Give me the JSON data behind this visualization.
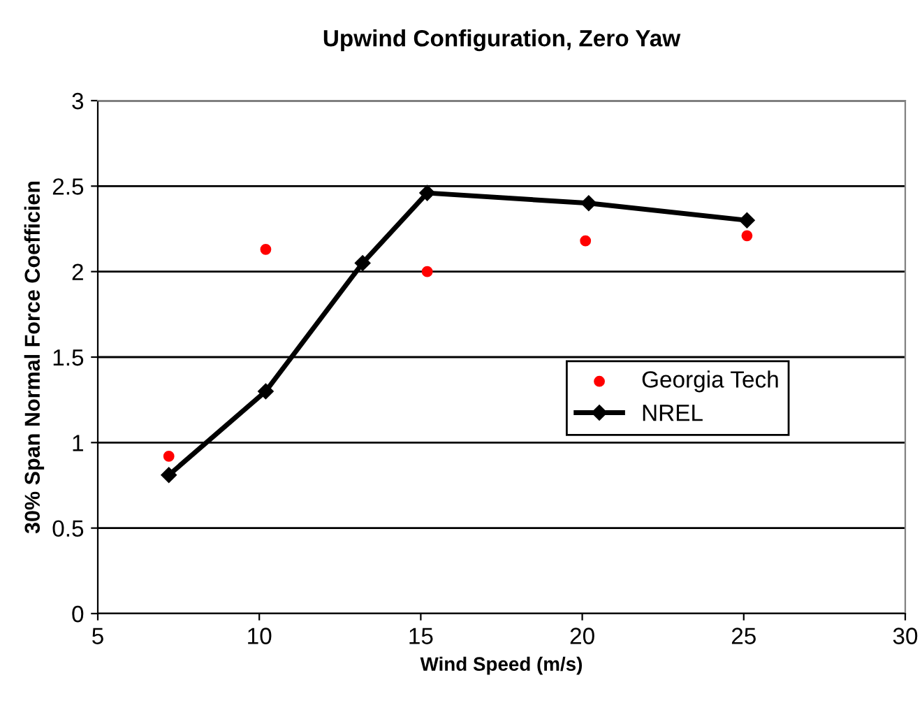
{
  "chart_data": {
    "type": "line",
    "title": "Upwind Configuration, Zero Yaw",
    "xlabel": "Wind Speed (m/s)",
    "ylabel": "30% Span Normal Force Coefficien",
    "series": [
      {
        "name": "Georgia Tech",
        "type": "scatter",
        "color": "#ff0000",
        "marker": "circle",
        "x": [
          7.2,
          10.2,
          15.2,
          20.1,
          25.1
        ],
        "values": [
          0.92,
          2.13,
          2.0,
          2.18,
          2.21
        ]
      },
      {
        "name": "NREL",
        "color": "#000000",
        "marker": "diamond",
        "line_style": "solid",
        "x": [
          7.2,
          10.2,
          13.2,
          15.2,
          20.2,
          25.1
        ],
        "values": [
          0.81,
          1.3,
          2.05,
          2.46,
          2.4,
          2.3
        ]
      }
    ],
    "xlim": [
      5,
      30
    ],
    "xticks": [
      5,
      10,
      15,
      20,
      25,
      30
    ],
    "ylim": [
      0,
      3
    ],
    "yticks": [
      0,
      {
        "value": 0.5,
        "label": "0.5"
      },
      1,
      {
        "value": 1.5,
        "label": "1.5"
      },
      2,
      {
        "value": 2.5,
        "label": "2.5"
      },
      3
    ],
    "grid": "y",
    "legend": "right"
  }
}
